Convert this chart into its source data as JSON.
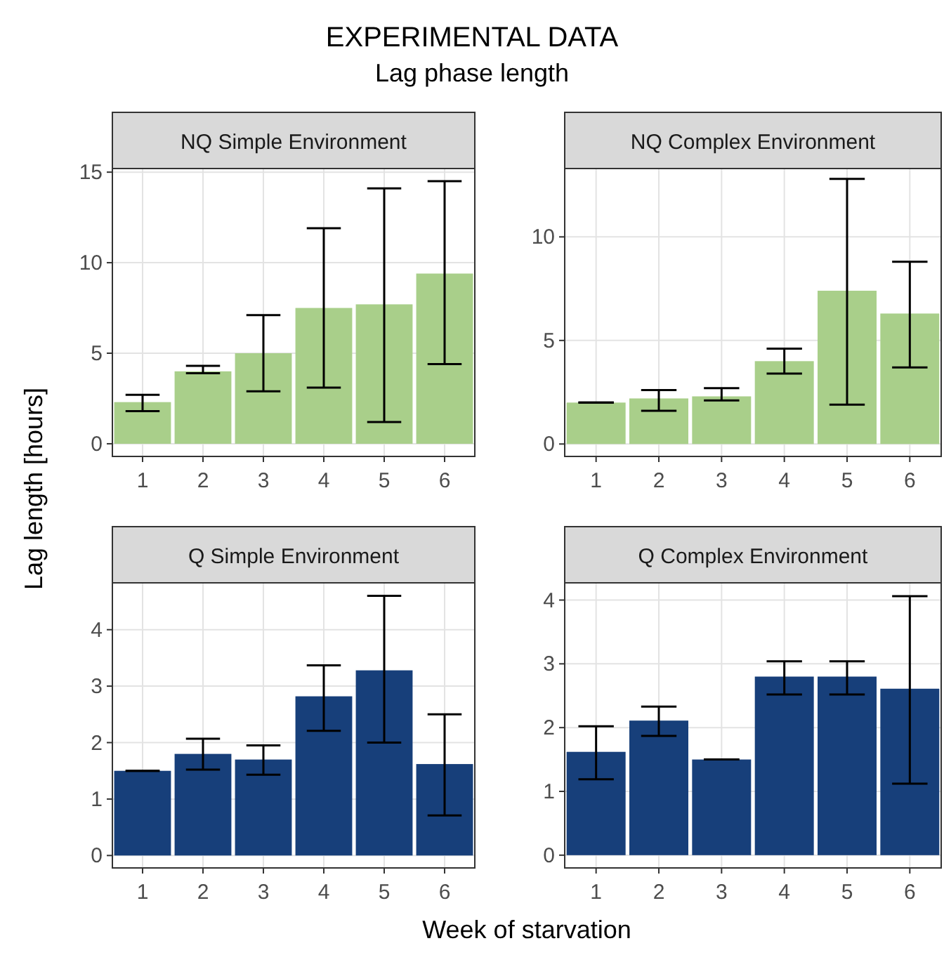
{
  "chart_data": [
    {
      "type": "other",
      "title": "EXPERIMENTAL DATA",
      "subtitle": "Lag phase length",
      "xlabel": "Week of starvation",
      "ylabel": "Lag length [hours]"
    },
    {
      "type": "bar",
      "title": "NQ Simple Environment",
      "categories": [
        "1",
        "2",
        "3",
        "4",
        "5",
        "6"
      ],
      "values": [
        2.3,
        4.0,
        5.0,
        7.5,
        7.7,
        9.4
      ],
      "errors": [
        [
          1.8,
          2.7
        ],
        [
          3.9,
          4.3
        ],
        [
          2.9,
          7.1
        ],
        [
          3.1,
          11.9
        ],
        [
          1.2,
          14.1
        ],
        [
          4.4,
          14.5
        ]
      ],
      "color": "#a9cf8a",
      "ylim": [
        -0.7,
        15.2
      ],
      "yticks": [
        0,
        5,
        10,
        15
      ],
      "grid": true
    },
    {
      "type": "bar",
      "title": "NQ Complex Environment",
      "categories": [
        "1",
        "2",
        "3",
        "4",
        "5",
        "6"
      ],
      "values": [
        2.0,
        2.2,
        2.3,
        4.0,
        7.4,
        6.3
      ],
      "errors": [
        [
          2.0,
          2.0
        ],
        [
          1.6,
          2.6
        ],
        [
          2.1,
          2.7
        ],
        [
          3.4,
          4.6
        ],
        [
          1.9,
          12.8
        ],
        [
          3.7,
          8.8
        ]
      ],
      "color": "#a9cf8a",
      "ylim": [
        -0.6,
        13.3
      ],
      "yticks": [
        0,
        5,
        10
      ],
      "grid": true
    },
    {
      "type": "bar",
      "title": "Q Simple Environment",
      "categories": [
        "1",
        "2",
        "3",
        "4",
        "5",
        "6"
      ],
      "values": [
        1.5,
        1.8,
        1.7,
        2.82,
        3.28,
        1.62
      ],
      "errors": [
        [
          1.5,
          1.5
        ],
        [
          1.52,
          2.07
        ],
        [
          1.43,
          1.95
        ],
        [
          2.21,
          3.37
        ],
        [
          2.0,
          4.6
        ],
        [
          0.71,
          2.5
        ]
      ],
      "color": "#173f7a",
      "ylim": [
        -0.22,
        4.83
      ],
      "yticks": [
        0,
        1,
        2,
        3,
        4
      ],
      "grid": true
    },
    {
      "type": "bar",
      "title": "Q Complex Environment",
      "categories": [
        "1",
        "2",
        "3",
        "4",
        "5",
        "6"
      ],
      "values": [
        1.62,
        2.11,
        1.5,
        2.8,
        2.8,
        2.61
      ],
      "errors": [
        [
          1.19,
          2.02
        ],
        [
          1.87,
          2.33
        ],
        [
          1.5,
          1.5
        ],
        [
          2.52,
          3.04
        ],
        [
          2.52,
          3.04
        ],
        [
          1.12,
          4.06
        ]
      ],
      "color": "#173f7a",
      "ylim": [
        -0.2,
        4.27
      ],
      "yticks": [
        0,
        1,
        2,
        3,
        4
      ],
      "grid": true
    }
  ]
}
